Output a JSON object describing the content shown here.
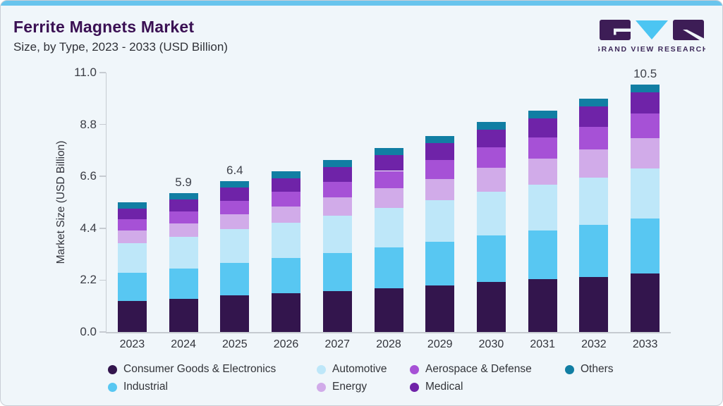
{
  "page": {
    "title": "Ferrite Magnets Market",
    "subtitle": "Size, by Type, 2023 - 2033 (USD Billion)"
  },
  "branding": {
    "logo_text": "GRAND VIEW RESEARCH",
    "logo_purple": "#3d1d56",
    "logo_cyan": "#4cc5f2"
  },
  "colors": {
    "card_background": "#f0f6fa",
    "accent_top_bar": "#68c4ed",
    "title_text": "#3a1053",
    "axis": "#c6cbd1"
  },
  "chart_data": {
    "type": "bar",
    "stacked": true,
    "title": "Ferrite Magnets Market",
    "subtitle": "Size, by Type, 2023 - 2033 (USD Billion)",
    "ylabel": "Market Size (USD Billion)",
    "xlabel": "",
    "ylim": [
      0,
      11
    ],
    "ytick_labels": [
      "0.0",
      "2.2",
      "4.4",
      "6.6",
      "8.8",
      "11.0"
    ],
    "grid": false,
    "categories": [
      "2023",
      "2024",
      "2025",
      "2026",
      "2027",
      "2028",
      "2029",
      "2030",
      "2031",
      "2032",
      "2033"
    ],
    "bar_value_labels": {
      "2024": "5.9",
      "2025": "6.4",
      "2033": "10.5"
    },
    "totals": [
      5.5,
      5.9,
      6.4,
      6.8,
      7.3,
      7.8,
      8.3,
      8.9,
      9.4,
      9.9,
      10.5
    ],
    "stack_order_note": "series listed bottom-to-top of stack",
    "series": [
      {
        "name": "Consumer Goods & Electronics",
        "color": "#33154d",
        "values": [
          1.32,
          1.41,
          1.54,
          1.63,
          1.74,
          1.86,
          1.98,
          2.12,
          2.23,
          2.34,
          2.48
        ]
      },
      {
        "name": "Industrial",
        "color": "#58c7f2",
        "values": [
          1.2,
          1.29,
          1.4,
          1.5,
          1.61,
          1.72,
          1.84,
          1.97,
          2.08,
          2.19,
          2.33
        ]
      },
      {
        "name": "Automotive",
        "color": "#bee7f9",
        "values": [
          1.25,
          1.33,
          1.42,
          1.5,
          1.59,
          1.68,
          1.77,
          1.87,
          1.95,
          2.03,
          2.13
        ]
      },
      {
        "name": "Energy",
        "color": "#d1abe9",
        "values": [
          0.52,
          0.57,
          0.64,
          0.69,
          0.76,
          0.84,
          0.91,
          1.0,
          1.09,
          1.17,
          1.27
        ]
      },
      {
        "name": "Aerospace & Defense",
        "color": "#a651d6",
        "values": [
          0.48,
          0.52,
          0.57,
          0.62,
          0.67,
          0.73,
          0.79,
          0.86,
          0.91,
          0.98,
          1.05
        ]
      },
      {
        "name": "Medical",
        "color": "#6f23a8",
        "values": [
          0.47,
          0.5,
          0.55,
          0.58,
          0.63,
          0.67,
          0.71,
          0.76,
          0.81,
          0.85,
          0.9
        ]
      },
      {
        "name": "Others",
        "color": "#117ea3",
        "values": [
          0.26,
          0.27,
          0.28,
          0.29,
          0.3,
          0.3,
          0.31,
          0.32,
          0.32,
          0.33,
          0.34
        ]
      }
    ],
    "legend_display_order": [
      {
        "label": "Consumer Goods & Electronics",
        "color": "#33154d"
      },
      {
        "label": "Automotive",
        "color": "#bee7f9"
      },
      {
        "label": "Aerospace & Defense",
        "color": "#a651d6"
      },
      {
        "label": "Others",
        "color": "#117ea3"
      },
      {
        "label": "Industrial",
        "color": "#58c7f2"
      },
      {
        "label": "Energy",
        "color": "#d1abe9"
      },
      {
        "label": "Medical",
        "color": "#6f23a8"
      }
    ],
    "legend_position": "bottom"
  }
}
